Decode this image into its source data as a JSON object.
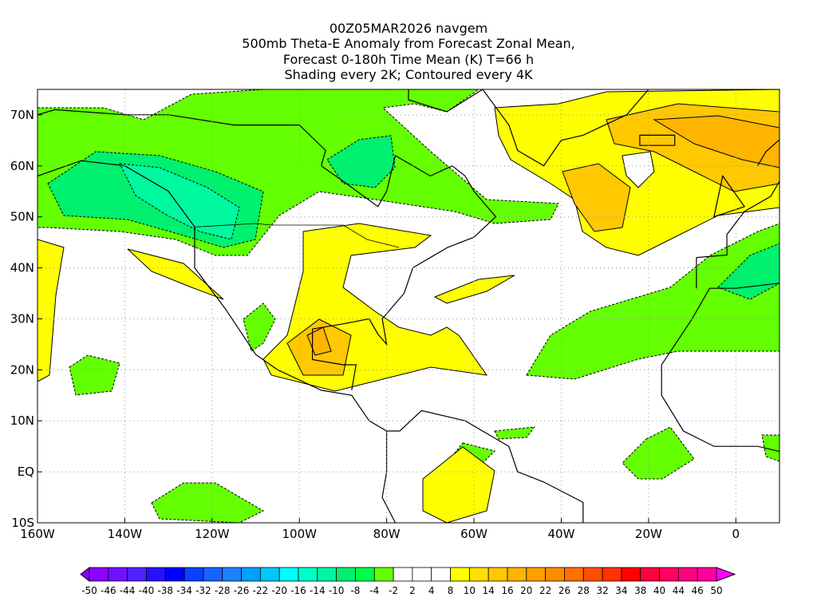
{
  "title": {
    "line1": "00Z05MAR2026 navgem",
    "line2": "500mb Theta-E Anomaly from Forecast Zonal Mean,",
    "line3": "Forecast 0-180h Time Mean (K) T=66 h",
    "line4": "Shading every 2K; Contoured every 4K"
  },
  "map": {
    "projection": "cylindrical equidistant",
    "lon_range": [
      -160,
      10
    ],
    "lat_range": [
      -10,
      75
    ],
    "x_ticks": [
      "160W",
      "140W",
      "120W",
      "100W",
      "80W",
      "60W",
      "40W",
      "20W",
      "0"
    ],
    "y_ticks": [
      "70N",
      "60N",
      "50N",
      "40N",
      "30N",
      "20N",
      "10N",
      "EQ",
      "10S"
    ]
  },
  "colorbar": {
    "labels": [
      "-50",
      "-46",
      "-44",
      "-40",
      "-38",
      "-34",
      "-32",
      "-28",
      "-26",
      "-22",
      "-20",
      "-16",
      "-14",
      "-10",
      "-8",
      "-4",
      "-2",
      "2",
      "4",
      "8",
      "10",
      "14",
      "16",
      "20",
      "22",
      "26",
      "28",
      "32",
      "34",
      "38",
      "40",
      "44",
      "46",
      "50"
    ],
    "colors": [
      "#8c00ff",
      "#7010ff",
      "#5020ff",
      "#2810ff",
      "#0000ff",
      "#0a40ff",
      "#1464ff",
      "#1e82ff",
      "#00a0ff",
      "#00c8ff",
      "#00ffff",
      "#00ffc8",
      "#00f8a0",
      "#00f070",
      "#00ff48",
      "#64ff00",
      "#ffffff",
      "#ffffff",
      "#ffffff",
      "#ffff00",
      "#ffe000",
      "#ffc800",
      "#ffb400",
      "#ffa000",
      "#ff8c00",
      "#ff7000",
      "#ff5000",
      "#ff3200",
      "#ff0000",
      "#ff0040",
      "#ff0064",
      "#ff0080",
      "#ff00a0",
      "#ff00d0"
    ],
    "low_color": "#8c00ff",
    "high_color": "#ff00ff"
  }
}
